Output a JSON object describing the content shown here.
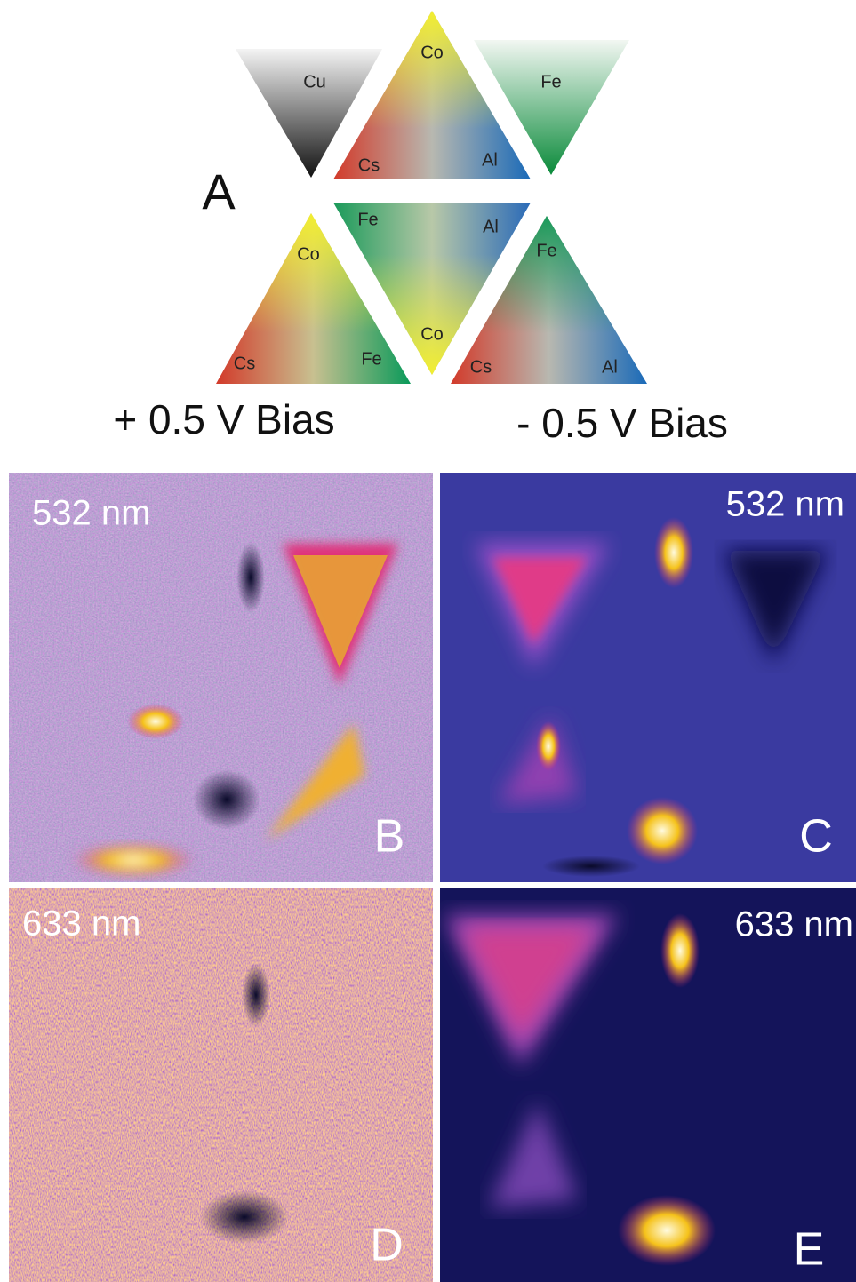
{
  "panel_a": {
    "label": "A",
    "triangles": [
      {
        "labels": [
          "Cu"
        ]
      },
      {
        "labels": [
          "Co",
          "Cs",
          "Al"
        ]
      },
      {
        "labels": [
          "Fe"
        ]
      },
      {
        "labels": [
          "Co",
          "Cs",
          "Fe"
        ]
      },
      {
        "labels": [
          "Fe",
          "Al",
          "Co"
        ]
      },
      {
        "labels": [
          "Fe",
          "Cs",
          "Al"
        ]
      }
    ],
    "captions": [
      "+ 0.5 V Bias",
      "- 0.5 V Bias"
    ]
  },
  "panels": [
    {
      "label": "B",
      "wavelength": "532 nm"
    },
    {
      "label": "C",
      "wavelength": "532 nm"
    },
    {
      "label": "D",
      "wavelength": "633 nm"
    },
    {
      "label": "E",
      "wavelength": "633 nm"
    }
  ]
}
